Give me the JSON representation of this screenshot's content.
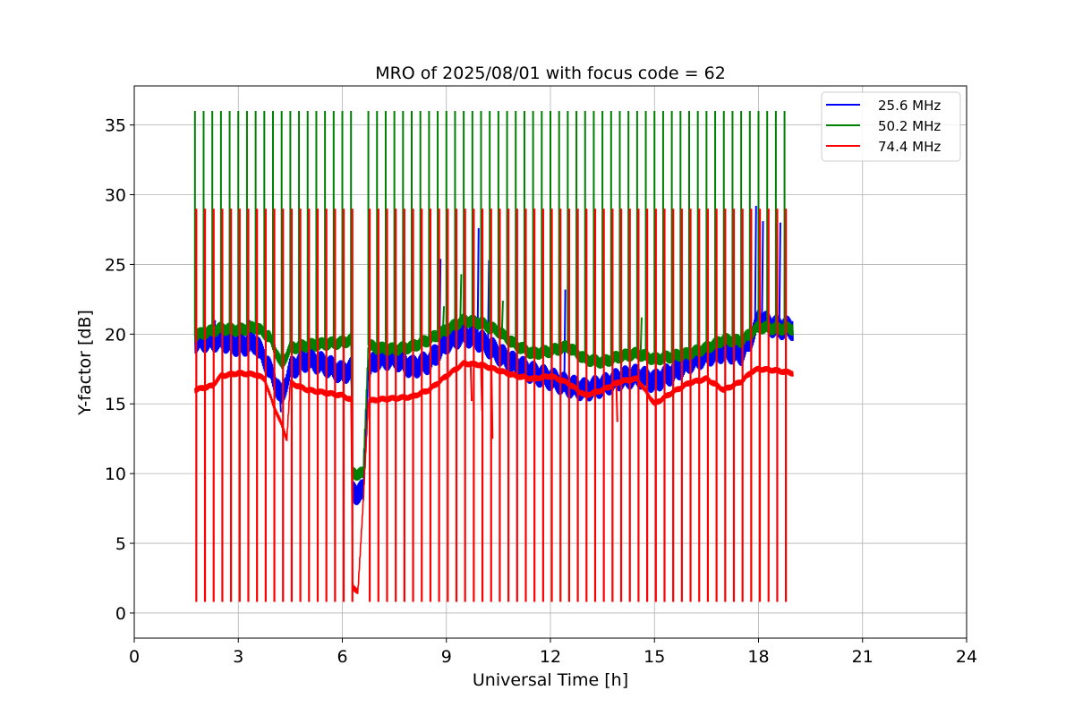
{
  "chart_data": {
    "type": "line",
    "title": "MRO of 2025/08/01 with focus code = 62",
    "xlabel": "Universal Time [h]",
    "ylabel": "Y-factor [dB]",
    "xlim": [
      0,
      24
    ],
    "ylim": [
      -1.8,
      37.8
    ],
    "xticks": [
      0,
      3,
      6,
      9,
      12,
      15,
      18,
      21,
      24
    ],
    "yticks": [
      0,
      5,
      10,
      15,
      20,
      25,
      30,
      35
    ],
    "grid": true,
    "legend_position": "top-right",
    "pulse_times": [
      1.75,
      2.0,
      2.25,
      2.5,
      2.75,
      3.0,
      3.25,
      3.5,
      3.75,
      4.0,
      4.25,
      4.5,
      4.75,
      5.0,
      5.25,
      5.5,
      5.75,
      6.0,
      6.25,
      6.75,
      7.0,
      7.25,
      7.5,
      7.75,
      8.0,
      8.25,
      8.5,
      8.75,
      9.0,
      9.25,
      9.5,
      9.75,
      10.0,
      10.25,
      10.5,
      10.75,
      11.0,
      11.25,
      11.5,
      11.75,
      12.0,
      12.25,
      12.5,
      12.75,
      13.0,
      13.25,
      13.5,
      13.75,
      14.0,
      14.25,
      14.5,
      14.75,
      15.0,
      15.25,
      15.5,
      15.75,
      16.0,
      16.25,
      16.5,
      16.75,
      17.0,
      17.25,
      17.5,
      17.75,
      18.0,
      18.25,
      18.5,
      18.75
    ],
    "series": [
      {
        "name": "25.6 MHz",
        "color": "#0000ff",
        "band_width": 1.8,
        "baseline": [
          [
            1.75,
            19.5
          ],
          [
            2.5,
            19.6
          ],
          [
            3.0,
            19.2
          ],
          [
            3.5,
            19.4
          ],
          [
            3.9,
            17.5
          ],
          [
            4.1,
            16.3
          ],
          [
            4.25,
            15.5
          ],
          [
            4.5,
            17.5
          ],
          [
            5.0,
            18.2
          ],
          [
            5.5,
            17.8
          ],
          [
            6.0,
            17.2
          ],
          [
            6.25,
            17.5
          ],
          [
            6.3,
            8.6
          ],
          [
            6.6,
            8.7
          ],
          [
            6.75,
            17.5
          ],
          [
            7.0,
            18.2
          ],
          [
            7.5,
            18.3
          ],
          [
            8.0,
            17.6
          ],
          [
            8.5,
            18.0
          ],
          [
            9.0,
            19.4
          ],
          [
            9.5,
            20.0
          ],
          [
            10.0,
            19.5
          ],
          [
            10.5,
            18.6
          ],
          [
            11.0,
            17.8
          ],
          [
            11.5,
            17.2
          ],
          [
            12.0,
            16.8
          ],
          [
            12.5,
            16.3
          ],
          [
            13.0,
            16.0
          ],
          [
            13.5,
            16.3
          ],
          [
            14.0,
            16.8
          ],
          [
            14.5,
            17.0
          ],
          [
            15.0,
            16.6
          ],
          [
            15.5,
            17.2
          ],
          [
            16.0,
            18.0
          ],
          [
            16.5,
            18.5
          ],
          [
            17.0,
            18.8
          ],
          [
            17.5,
            18.6
          ],
          [
            17.8,
            19.8
          ],
          [
            18.0,
            21.0
          ],
          [
            18.5,
            20.5
          ],
          [
            19.0,
            20.4
          ]
        ],
        "spikes": [
          [
            2.3,
            21.0
          ],
          [
            3.3,
            21.0
          ],
          [
            4.2,
            14.4
          ],
          [
            8.8,
            25.4
          ],
          [
            9.9,
            27.6
          ],
          [
            10.2,
            25.3
          ],
          [
            12.4,
            23.2
          ],
          [
            17.9,
            29.2
          ],
          [
            18.1,
            28.1
          ],
          [
            18.6,
            28.0
          ]
        ]
      },
      {
        "name": "50.2 MHz",
        "color": "#008000",
        "band_width": 1.0,
        "baseline": [
          [
            1.75,
            19.9
          ],
          [
            2.5,
            20.4
          ],
          [
            3.0,
            20.3
          ],
          [
            3.5,
            20.5
          ],
          [
            3.9,
            19.8
          ],
          [
            4.25,
            17.8
          ],
          [
            4.5,
            19.0
          ],
          [
            5.0,
            19.2
          ],
          [
            5.5,
            19.3
          ],
          [
            6.0,
            19.4
          ],
          [
            6.25,
            19.6
          ],
          [
            6.3,
            10.0
          ],
          [
            6.6,
            10.0
          ],
          [
            6.75,
            19.2
          ],
          [
            7.0,
            19.0
          ],
          [
            7.5,
            18.9
          ],
          [
            8.0,
            19.1
          ],
          [
            8.5,
            19.6
          ],
          [
            9.0,
            20.3
          ],
          [
            9.5,
            21.0
          ],
          [
            10.0,
            20.8
          ],
          [
            10.5,
            20.2
          ],
          [
            11.0,
            19.2
          ],
          [
            11.5,
            18.6
          ],
          [
            12.0,
            18.8
          ],
          [
            12.5,
            19.1
          ],
          [
            13.0,
            18.2
          ],
          [
            13.5,
            18.0
          ],
          [
            14.0,
            18.4
          ],
          [
            14.5,
            18.6
          ],
          [
            15.0,
            18.2
          ],
          [
            15.5,
            18.4
          ],
          [
            16.0,
            18.6
          ],
          [
            16.5,
            19.0
          ],
          [
            17.0,
            19.6
          ],
          [
            17.5,
            19.5
          ],
          [
            18.0,
            20.5
          ],
          [
            18.5,
            20.4
          ],
          [
            19.0,
            20.4
          ]
        ],
        "spikes": [
          [
            8.9,
            22.0
          ],
          [
            9.4,
            24.3
          ],
          [
            10.6,
            22.4
          ],
          [
            14.6,
            21.2
          ]
        ]
      },
      {
        "name": "74.4 MHz",
        "color": "#ff0000",
        "band_width": 0.5,
        "baseline": [
          [
            1.75,
            16.0
          ],
          [
            2.25,
            16.3
          ],
          [
            2.5,
            17.0
          ],
          [
            3.0,
            17.2
          ],
          [
            3.5,
            17.1
          ],
          [
            3.75,
            16.8
          ],
          [
            4.0,
            15.0
          ],
          [
            4.25,
            13.5
          ],
          [
            4.4,
            12.5
          ],
          [
            4.5,
            16.5
          ],
          [
            5.0,
            16.0
          ],
          [
            5.5,
            15.8
          ],
          [
            6.0,
            15.6
          ],
          [
            6.25,
            15.3
          ],
          [
            6.3,
            1.8
          ],
          [
            6.45,
            1.6
          ],
          [
            6.6,
            7.8
          ],
          [
            6.75,
            15.2
          ],
          [
            7.0,
            15.3
          ],
          [
            7.5,
            15.4
          ],
          [
            8.0,
            15.5
          ],
          [
            8.5,
            16.0
          ],
          [
            9.0,
            17.0
          ],
          [
            9.5,
            17.9
          ],
          [
            10.0,
            17.8
          ],
          [
            10.5,
            17.4
          ],
          [
            11.0,
            17.0
          ],
          [
            11.5,
            16.8
          ],
          [
            12.0,
            17.0
          ],
          [
            12.5,
            16.5
          ],
          [
            13.0,
            15.6
          ],
          [
            13.5,
            16.0
          ],
          [
            14.0,
            16.6
          ],
          [
            14.5,
            16.8
          ],
          [
            15.0,
            15.0
          ],
          [
            15.5,
            15.8
          ],
          [
            16.0,
            16.5
          ],
          [
            16.5,
            16.8
          ],
          [
            17.0,
            16.0
          ],
          [
            17.5,
            16.6
          ],
          [
            17.8,
            17.3
          ],
          [
            18.0,
            17.5
          ],
          [
            18.5,
            17.4
          ],
          [
            19.0,
            17.2
          ]
        ],
        "spikes": [
          [
            9.7,
            15.2
          ],
          [
            10.0,
            14.5
          ],
          [
            10.3,
            12.5
          ],
          [
            13.9,
            13.7
          ]
        ]
      }
    ],
    "pulse_top_green": 36.0,
    "pulse_top_red": 29.0,
    "pulse_bottom_red": 0.8
  }
}
